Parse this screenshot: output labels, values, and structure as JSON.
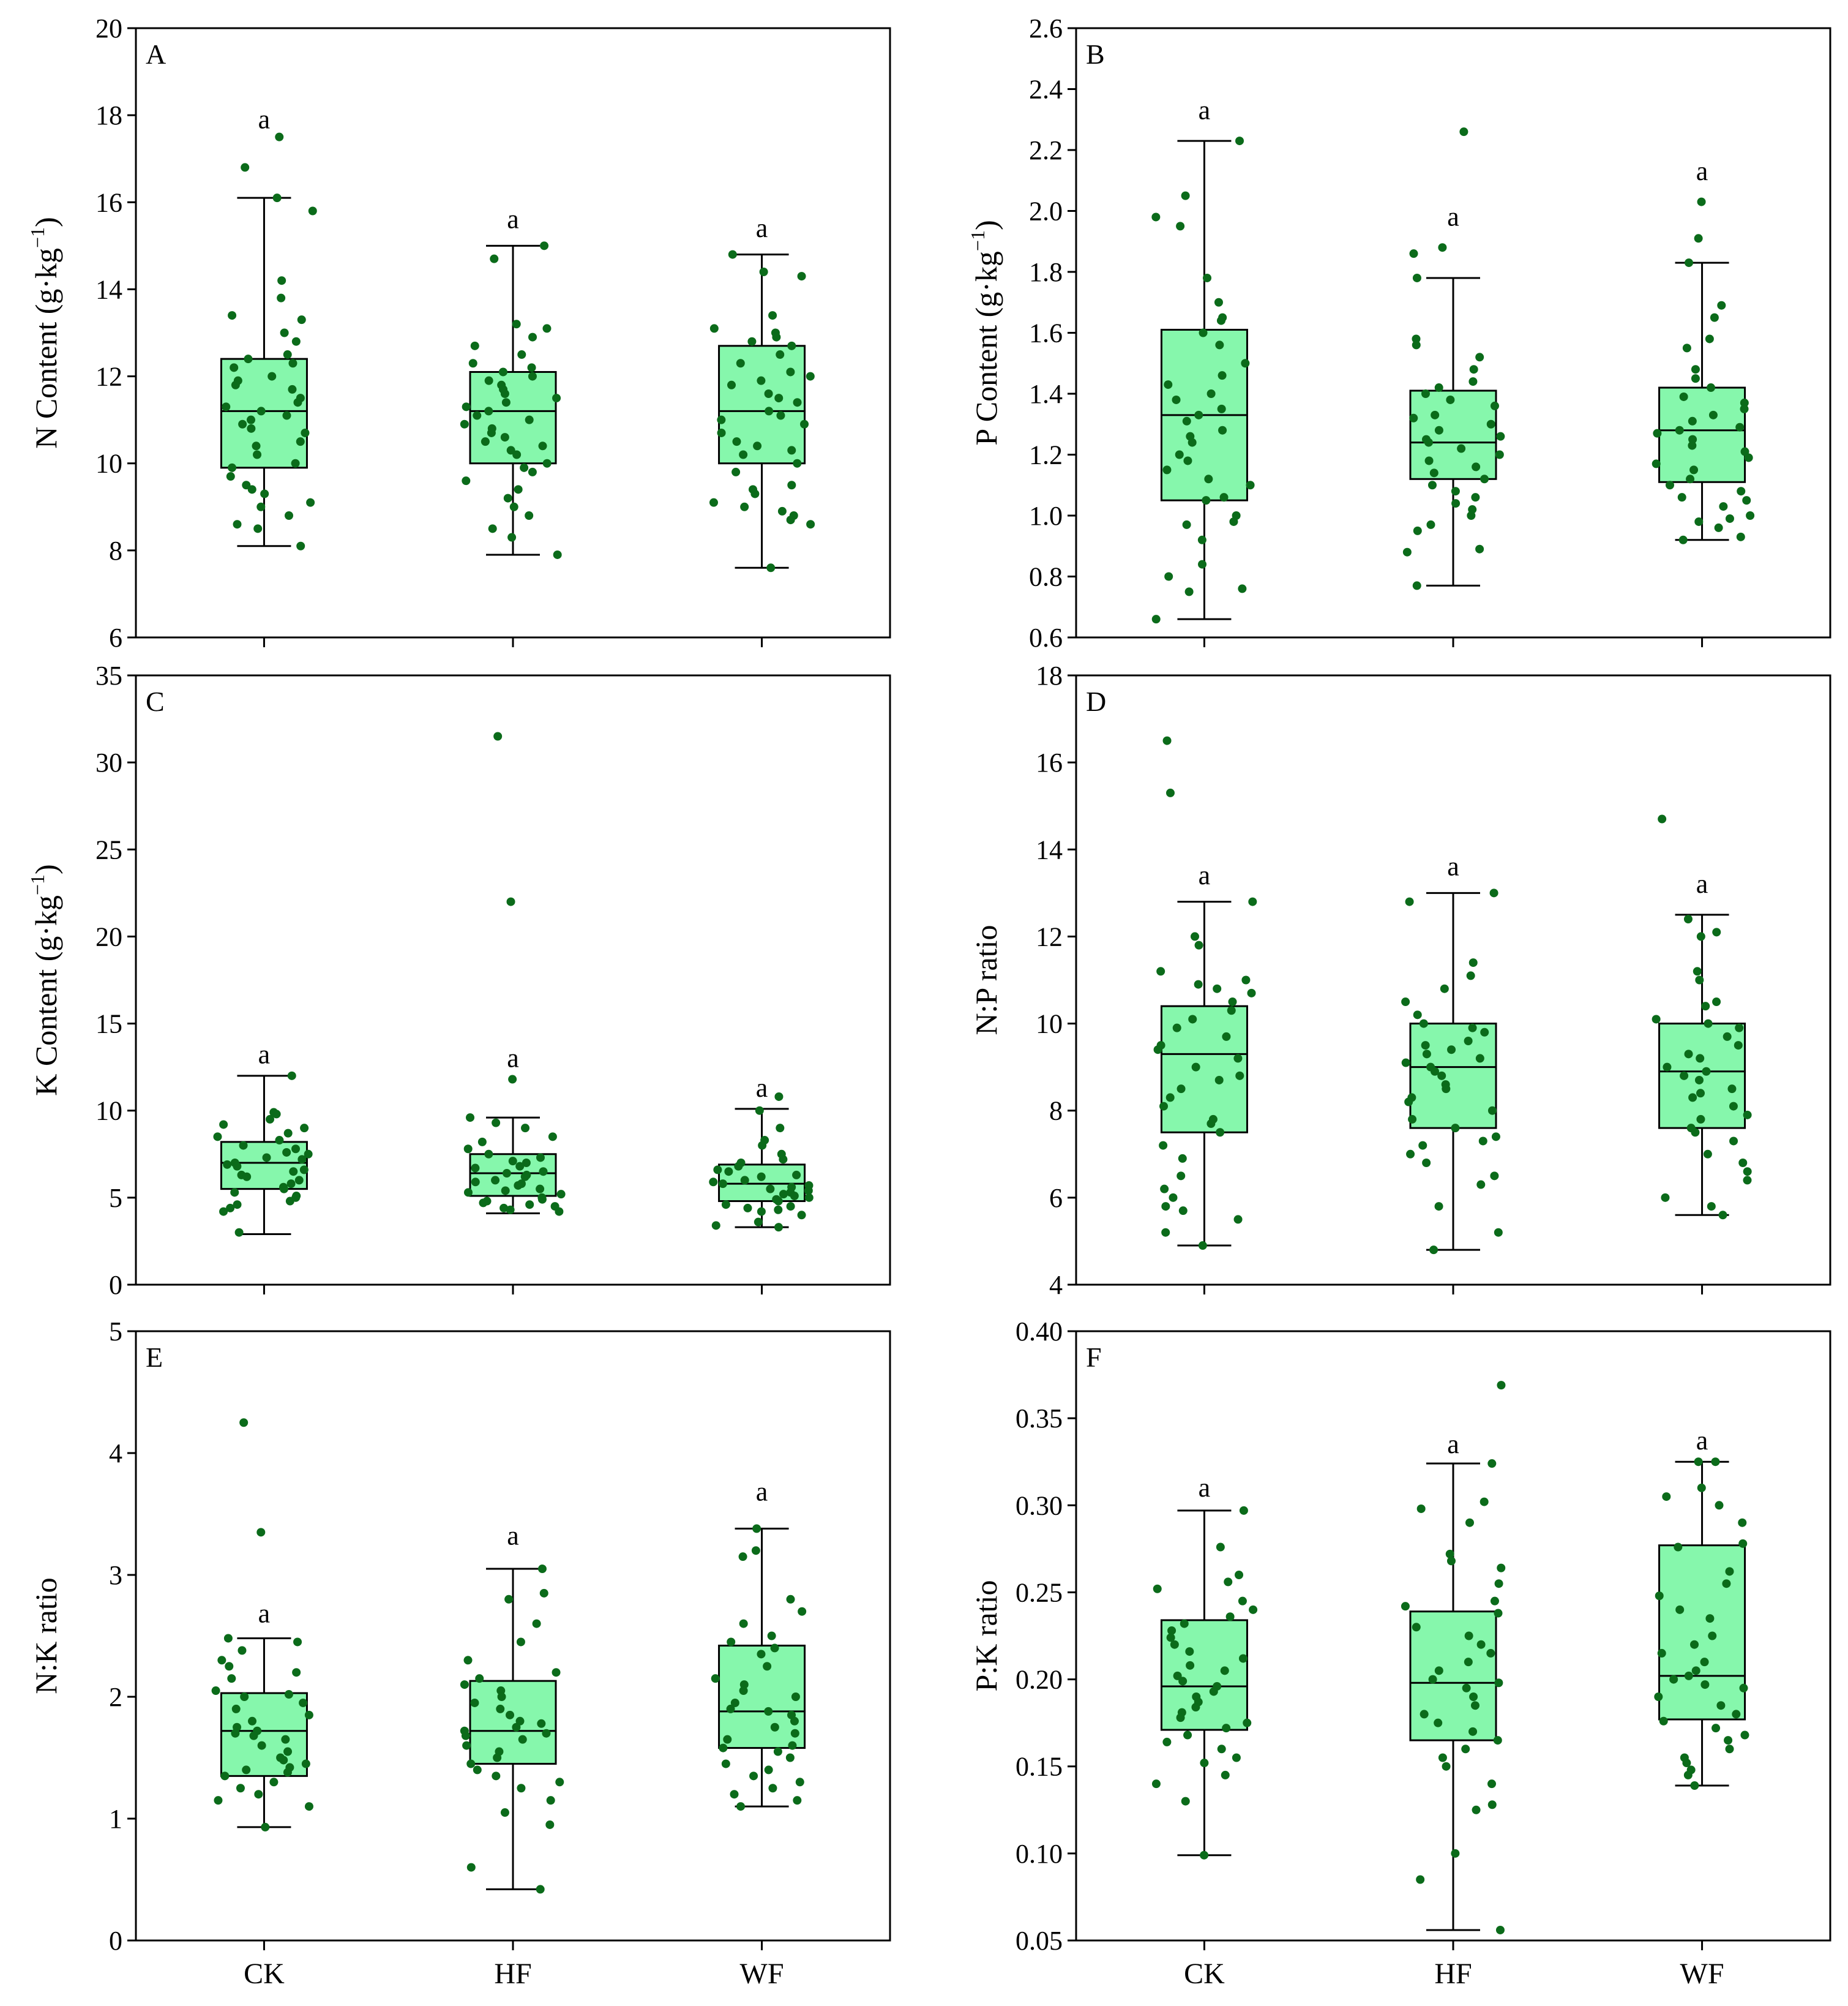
{
  "colors": {
    "box_fill": "#86f7ac",
    "stroke": "#000000",
    "point": "#0b6b1a"
  },
  "chart_data": [
    {
      "id": "A",
      "type": "box",
      "panel_label": "A",
      "ylabel": "N Content (g·kg",
      "ylabel_sup": "−1",
      "ylabel_suffix": ")",
      "ylim": [
        6,
        20
      ],
      "yticks": [
        6,
        8,
        10,
        12,
        14,
        16,
        18,
        20
      ],
      "categories": [
        "CK",
        "HF",
        "WF"
      ],
      "show_xlabels": false,
      "boxes": [
        {
          "category": "CK",
          "whisker_low": 8.1,
          "q1": 9.9,
          "median": 11.2,
          "q3": 12.4,
          "whisker_high": 16.1,
          "label": "a",
          "label_y": 17.9,
          "points": [
            17.5,
            16.8,
            16.1,
            15.8,
            14.2,
            13.8,
            13.4,
            13.3,
            13.0,
            12.8,
            12.5,
            12.4,
            12.3,
            12.2,
            12.0,
            11.9,
            11.8,
            11.7,
            11.5,
            11.4,
            11.3,
            11.2,
            11.1,
            11.0,
            10.9,
            10.8,
            10.7,
            10.5,
            10.4,
            10.2,
            10.0,
            9.9,
            9.7,
            9.5,
            9.4,
            9.3,
            9.1,
            9.0,
            8.8,
            8.6,
            8.5,
            8.1
          ]
        },
        {
          "category": "HF",
          "whisker_low": 7.9,
          "q1": 10.0,
          "median": 11.2,
          "q3": 12.1,
          "whisker_high": 15.0,
          "label": "a",
          "label_y": 15.6,
          "points": [
            15.0,
            14.7,
            13.2,
            13.1,
            12.9,
            12.7,
            12.5,
            12.3,
            12.2,
            12.1,
            12.0,
            11.9,
            11.8,
            11.7,
            11.6,
            11.5,
            11.4,
            11.3,
            11.2,
            11.1,
            11.0,
            10.9,
            10.8,
            10.7,
            10.6,
            10.5,
            10.4,
            10.3,
            10.2,
            10.0,
            9.9,
            9.8,
            9.6,
            9.4,
            9.2,
            9.0,
            8.8,
            8.5,
            8.3,
            7.9
          ]
        },
        {
          "category": "WF",
          "whisker_low": 7.6,
          "q1": 10.0,
          "median": 11.2,
          "q3": 12.7,
          "whisker_high": 14.8,
          "label": "a",
          "label_y": 15.4,
          "points": [
            14.8,
            14.4,
            14.3,
            13.4,
            13.1,
            13.0,
            12.9,
            12.8,
            12.7,
            12.5,
            12.3,
            12.1,
            12.0,
            11.9,
            11.8,
            11.6,
            11.5,
            11.4,
            11.2,
            11.1,
            11.0,
            10.9,
            10.7,
            10.5,
            10.4,
            10.3,
            10.2,
            10.0,
            9.8,
            9.5,
            9.4,
            9.3,
            9.1,
            9.0,
            8.9,
            8.8,
            8.7,
            8.6,
            7.6
          ]
        }
      ]
    },
    {
      "id": "B",
      "type": "box",
      "panel_label": "B",
      "ylabel": "P Content (g·kg",
      "ylabel_sup": "−1",
      "ylabel_suffix": ")",
      "ylim": [
        0.6,
        2.6
      ],
      "yticks": [
        0.6,
        0.8,
        1.0,
        1.2,
        1.4,
        1.6,
        1.8,
        2.0,
        2.2,
        2.4,
        2.6
      ],
      "tick_decimals": 1,
      "categories": [
        "CK",
        "HF",
        "WF"
      ],
      "show_xlabels": false,
      "boxes": [
        {
          "category": "CK",
          "whisker_low": 0.66,
          "q1": 1.05,
          "median": 1.33,
          "q3": 1.61,
          "whisker_high": 2.23,
          "label": "a",
          "label_y": 2.33,
          "points": [
            2.23,
            2.05,
            1.98,
            1.95,
            1.78,
            1.7,
            1.65,
            1.64,
            1.6,
            1.56,
            1.5,
            1.46,
            1.43,
            1.4,
            1.38,
            1.35,
            1.33,
            1.31,
            1.28,
            1.26,
            1.24,
            1.2,
            1.18,
            1.15,
            1.12,
            1.1,
            1.06,
            1.05,
            1.0,
            0.98,
            0.97,
            0.92,
            0.84,
            0.8,
            0.76,
            0.75,
            0.66
          ]
        },
        {
          "category": "HF",
          "whisker_low": 0.77,
          "q1": 1.12,
          "median": 1.24,
          "q3": 1.41,
          "whisker_high": 1.78,
          "label": "a",
          "label_y": 1.98,
          "points": [
            2.26,
            1.88,
            1.86,
            1.78,
            1.58,
            1.56,
            1.52,
            1.48,
            1.44,
            1.42,
            1.4,
            1.38,
            1.36,
            1.33,
            1.32,
            1.3,
            1.28,
            1.26,
            1.25,
            1.24,
            1.22,
            1.2,
            1.18,
            1.16,
            1.14,
            1.12,
            1.1,
            1.08,
            1.06,
            1.04,
            1.02,
            1.0,
            0.97,
            0.95,
            0.89,
            0.88,
            0.77
          ]
        },
        {
          "category": "WF",
          "whisker_low": 0.92,
          "q1": 1.11,
          "median": 1.28,
          "q3": 1.42,
          "whisker_high": 1.83,
          "label": "a",
          "label_y": 2.13,
          "points": [
            2.03,
            1.91,
            1.83,
            1.69,
            1.65,
            1.58,
            1.55,
            1.48,
            1.45,
            1.42,
            1.39,
            1.37,
            1.35,
            1.33,
            1.31,
            1.29,
            1.28,
            1.27,
            1.25,
            1.23,
            1.21,
            1.19,
            1.17,
            1.15,
            1.12,
            1.1,
            1.08,
            1.06,
            1.05,
            1.03,
            1.0,
            0.99,
            0.98,
            0.96,
            0.93,
            0.92
          ]
        }
      ]
    },
    {
      "id": "C",
      "type": "box",
      "panel_label": "C",
      "ylabel": "K Content (g·kg",
      "ylabel_sup": "−1",
      "ylabel_suffix": ")",
      "ylim": [
        0,
        35
      ],
      "yticks": [
        0,
        5,
        10,
        15,
        20,
        25,
        30,
        35
      ],
      "categories": [
        "CK",
        "HF",
        "WF"
      ],
      "show_xlabels": false,
      "boxes": [
        {
          "category": "CK",
          "whisker_low": 2.9,
          "q1": 5.5,
          "median": 7.0,
          "q3": 8.2,
          "whisker_high": 12.0,
          "label": "a",
          "label_y": 13.2,
          "points": [
            12.0,
            9.9,
            9.8,
            9.5,
            9.2,
            9.0,
            8.7,
            8.5,
            8.3,
            8.0,
            7.8,
            7.6,
            7.5,
            7.3,
            7.2,
            7.0,
            6.9,
            6.8,
            6.6,
            6.5,
            6.3,
            6.2,
            6.0,
            5.8,
            5.6,
            5.5,
            5.3,
            5.1,
            5.0,
            4.8,
            4.6,
            4.4,
            4.2,
            3.0
          ]
        },
        {
          "category": "HF",
          "whisker_low": 4.1,
          "q1": 5.1,
          "median": 6.4,
          "q3": 7.5,
          "whisker_high": 9.6,
          "label": "a",
          "label_y": 13.0,
          "points": [
            31.5,
            22.0,
            11.8,
            9.6,
            9.3,
            9.0,
            8.5,
            8.2,
            7.8,
            7.5,
            7.3,
            7.1,
            7.0,
            6.8,
            6.7,
            6.5,
            6.4,
            6.3,
            6.2,
            6.0,
            5.9,
            5.8,
            5.7,
            5.5,
            5.4,
            5.3,
            5.2,
            5.0,
            4.9,
            4.8,
            4.7,
            4.6,
            4.5,
            4.4,
            4.3,
            4.2
          ]
        },
        {
          "category": "WF",
          "whisker_low": 3.3,
          "q1": 4.8,
          "median": 5.8,
          "q3": 6.9,
          "whisker_high": 10.1,
          "label": "a",
          "label_y": 11.3,
          "points": [
            10.8,
            10.0,
            9.0,
            8.3,
            8.0,
            7.5,
            7.2,
            7.0,
            6.8,
            6.6,
            6.5,
            6.3,
            6.2,
            6.0,
            5.9,
            5.8,
            5.7,
            5.6,
            5.5,
            5.4,
            5.3,
            5.2,
            5.1,
            5.0,
            4.9,
            4.8,
            4.6,
            4.5,
            4.4,
            4.3,
            4.2,
            4.0,
            3.6,
            3.4,
            3.3
          ]
        }
      ]
    },
    {
      "id": "D",
      "type": "box",
      "panel_label": "D",
      "ylabel": "N:P ratio",
      "ylim": [
        4,
        18
      ],
      "yticks": [
        4,
        6,
        8,
        10,
        12,
        14,
        16,
        18
      ],
      "categories": [
        "CK",
        "HF",
        "WF"
      ],
      "show_xlabels": false,
      "boxes": [
        {
          "category": "CK",
          "whisker_low": 4.9,
          "q1": 7.5,
          "median": 9.3,
          "q3": 10.4,
          "whisker_high": 12.8,
          "label": "a",
          "label_y": 13.4,
          "points": [
            16.5,
            15.3,
            12.8,
            12.0,
            11.8,
            11.2,
            11.0,
            10.9,
            10.8,
            10.7,
            10.5,
            10.3,
            10.1,
            9.9,
            9.7,
            9.5,
            9.4,
            9.2,
            9.0,
            8.8,
            8.7,
            8.5,
            8.3,
            8.1,
            7.8,
            7.7,
            7.5,
            7.2,
            6.9,
            6.5,
            6.2,
            6.0,
            5.8,
            5.7,
            5.5,
            5.2,
            4.9
          ]
        },
        {
          "category": "HF",
          "whisker_low": 4.8,
          "q1": 7.6,
          "median": 9.0,
          "q3": 10.0,
          "whisker_high": 13.0,
          "label": "a",
          "label_y": 13.6,
          "points": [
            13.0,
            12.8,
            11.4,
            11.1,
            10.8,
            10.5,
            10.2,
            10.0,
            9.9,
            9.8,
            9.6,
            9.5,
            9.4,
            9.3,
            9.2,
            9.1,
            9.0,
            8.9,
            8.8,
            8.6,
            8.5,
            8.3,
            8.2,
            8.0,
            7.8,
            7.6,
            7.4,
            7.3,
            7.2,
            7.0,
            6.8,
            6.5,
            6.3,
            5.8,
            5.2,
            4.8
          ]
        },
        {
          "category": "WF",
          "whisker_low": 5.6,
          "q1": 7.6,
          "median": 8.9,
          "q3": 10.0,
          "whisker_high": 12.5,
          "label": "a",
          "label_y": 13.2,
          "points": [
            14.7,
            12.4,
            12.1,
            12.0,
            11.2,
            11.0,
            10.5,
            10.4,
            10.1,
            10.0,
            9.9,
            9.7,
            9.5,
            9.3,
            9.2,
            9.0,
            8.9,
            8.8,
            8.7,
            8.5,
            8.4,
            8.3,
            8.1,
            7.9,
            7.8,
            7.6,
            7.5,
            7.3,
            7.0,
            6.8,
            6.6,
            6.4,
            6.0,
            5.8,
            5.6
          ]
        }
      ]
    },
    {
      "id": "E",
      "type": "box",
      "panel_label": "E",
      "ylabel": "N:K ratio",
      "ylim": [
        0,
        5
      ],
      "yticks": [
        0,
        1,
        2,
        3,
        4,
        5
      ],
      "categories": [
        "CK",
        "HF",
        "WF"
      ],
      "show_xlabels": true,
      "boxes": [
        {
          "category": "CK",
          "whisker_low": 0.93,
          "q1": 1.35,
          "median": 1.72,
          "q3": 2.03,
          "whisker_high": 2.48,
          "label": "a",
          "label_y": 2.68,
          "points": [
            4.25,
            3.35,
            2.48,
            2.45,
            2.38,
            2.3,
            2.25,
            2.2,
            2.15,
            2.05,
            2.02,
            2.0,
            1.95,
            1.9,
            1.85,
            1.8,
            1.75,
            1.72,
            1.7,
            1.68,
            1.65,
            1.6,
            1.55,
            1.5,
            1.48,
            1.45,
            1.42,
            1.4,
            1.38,
            1.35,
            1.3,
            1.25,
            1.2,
            1.15,
            1.1,
            0.93
          ]
        },
        {
          "category": "HF",
          "whisker_low": 0.42,
          "q1": 1.45,
          "median": 1.72,
          "q3": 2.13,
          "whisker_high": 3.05,
          "label": "a",
          "label_y": 3.32,
          "points": [
            3.05,
            2.85,
            2.8,
            2.6,
            2.45,
            2.3,
            2.2,
            2.15,
            2.1,
            2.05,
            2.0,
            1.95,
            1.9,
            1.85,
            1.8,
            1.78,
            1.75,
            1.72,
            1.7,
            1.68,
            1.65,
            1.6,
            1.55,
            1.5,
            1.45,
            1.4,
            1.35,
            1.3,
            1.25,
            1.15,
            1.05,
            0.95,
            0.6,
            0.42
          ]
        },
        {
          "category": "WF",
          "whisker_low": 1.1,
          "q1": 1.58,
          "median": 1.88,
          "q3": 2.42,
          "whisker_high": 3.38,
          "label": "a",
          "label_y": 3.68,
          "points": [
            3.38,
            3.2,
            3.15,
            2.8,
            2.7,
            2.6,
            2.5,
            2.45,
            2.4,
            2.35,
            2.25,
            2.15,
            2.1,
            2.05,
            2.0,
            1.95,
            1.9,
            1.88,
            1.85,
            1.8,
            1.75,
            1.7,
            1.65,
            1.6,
            1.58,
            1.55,
            1.5,
            1.45,
            1.4,
            1.35,
            1.3,
            1.25,
            1.2,
            1.15,
            1.1
          ]
        }
      ]
    },
    {
      "id": "F",
      "type": "box",
      "panel_label": "F",
      "ylabel": "P:K ratio",
      "ylim": [
        0.05,
        0.4
      ],
      "yticks": [
        0.05,
        0.1,
        0.15,
        0.2,
        0.25,
        0.3,
        0.35,
        0.4
      ],
      "tick_decimals": 2,
      "categories": [
        "CK",
        "HF",
        "WF"
      ],
      "show_xlabels": true,
      "boxes": [
        {
          "category": "CK",
          "whisker_low": 0.099,
          "q1": 0.171,
          "median": 0.196,
          "q3": 0.234,
          "whisker_high": 0.297,
          "label": "a",
          "label_y": 0.31,
          "points": [
            0.297,
            0.276,
            0.26,
            0.256,
            0.252,
            0.245,
            0.24,
            0.236,
            0.232,
            0.228,
            0.224,
            0.22,
            0.216,
            0.212,
            0.208,
            0.205,
            0.202,
            0.199,
            0.196,
            0.193,
            0.19,
            0.187,
            0.184,
            0.181,
            0.178,
            0.175,
            0.172,
            0.168,
            0.164,
            0.16,
            0.155,
            0.152,
            0.145,
            0.14,
            0.13,
            0.099
          ]
        },
        {
          "category": "HF",
          "whisker_low": 0.056,
          "q1": 0.165,
          "median": 0.198,
          "q3": 0.239,
          "whisker_high": 0.324,
          "label": "a",
          "label_y": 0.335,
          "points": [
            0.369,
            0.324,
            0.302,
            0.298,
            0.29,
            0.272,
            0.268,
            0.264,
            0.255,
            0.245,
            0.242,
            0.238,
            0.23,
            0.225,
            0.22,
            0.215,
            0.21,
            0.205,
            0.2,
            0.198,
            0.195,
            0.19,
            0.185,
            0.18,
            0.175,
            0.17,
            0.165,
            0.16,
            0.155,
            0.15,
            0.14,
            0.128,
            0.125,
            0.1,
            0.085,
            0.056
          ]
        },
        {
          "category": "WF",
          "whisker_low": 0.139,
          "q1": 0.177,
          "median": 0.202,
          "q3": 0.277,
          "whisker_high": 0.325,
          "label": "a",
          "label_y": 0.337,
          "points": [
            0.325,
            0.325,
            0.31,
            0.305,
            0.3,
            0.29,
            0.278,
            0.276,
            0.262,
            0.255,
            0.248,
            0.24,
            0.235,
            0.225,
            0.22,
            0.215,
            0.21,
            0.205,
            0.202,
            0.2,
            0.197,
            0.195,
            0.19,
            0.185,
            0.18,
            0.176,
            0.172,
            0.168,
            0.165,
            0.16,
            0.155,
            0.152,
            0.148,
            0.145,
            0.139
          ]
        }
      ]
    }
  ]
}
